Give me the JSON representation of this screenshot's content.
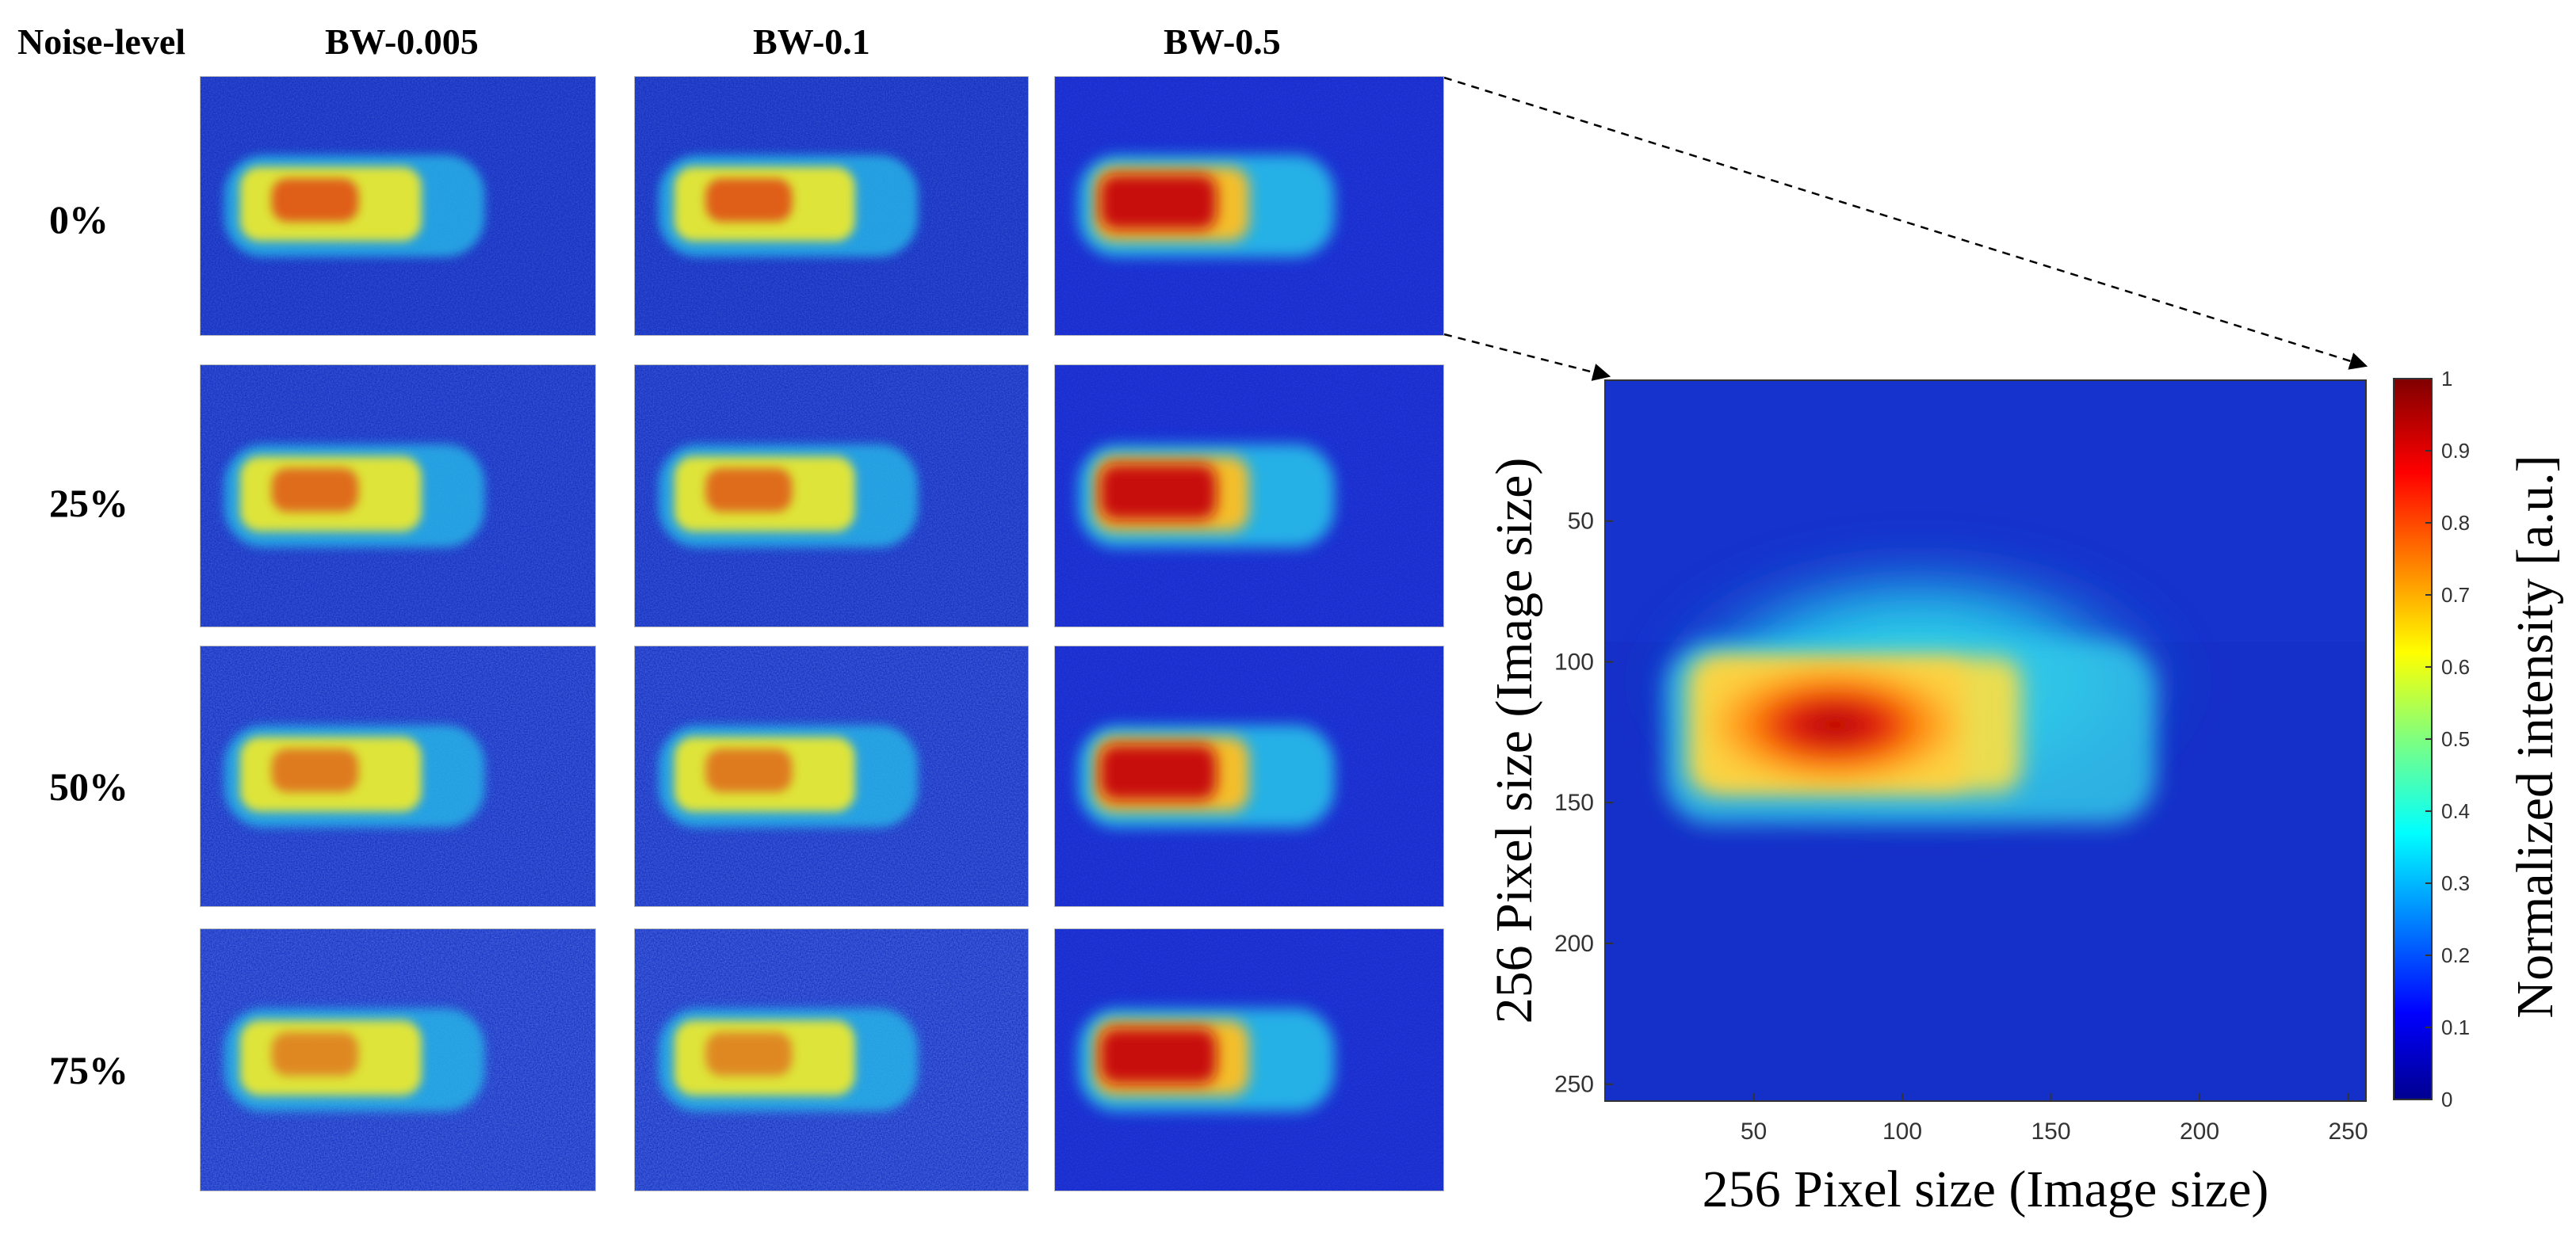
{
  "grid": {
    "corner_label": "Noise-level",
    "columns": [
      "BW-0.005",
      "BW-0.1",
      "BW-0.5"
    ],
    "rows": [
      "0%",
      "25%",
      "50%",
      "75%"
    ]
  },
  "chart_data": {
    "type": "heatmap",
    "title": "",
    "xlabel": "256 Pixel size (Image size)",
    "ylabel": "256 Pixel size (Image size)",
    "xlim": [
      0,
      256
    ],
    "ylim": [
      256,
      0
    ],
    "x_ticks": [
      50,
      100,
      150,
      200,
      250
    ],
    "y_ticks": [
      50,
      100,
      150,
      200,
      250
    ],
    "colorbar": {
      "label": "Normalized intensity [a.u.]",
      "range": [
        0,
        1
      ],
      "ticks": [
        0,
        0.1,
        0.2,
        0.3,
        0.4,
        0.5,
        0.6,
        0.7,
        0.8,
        0.9,
        1
      ],
      "colormap": "jet"
    },
    "hot_region": {
      "x_range": [
        20,
        185
      ],
      "y_range": [
        95,
        155
      ],
      "peak_intensity": 1,
      "background_intensity": 0.15
    }
  },
  "colors": {
    "jet_dark_blue": "#00008f",
    "jet_blue": "#1530c8",
    "jet_red": "#c00000",
    "arrow": "#000000"
  }
}
